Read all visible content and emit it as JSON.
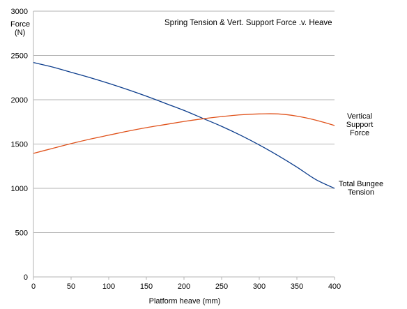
{
  "chart_data": {
    "type": "line",
    "title": "Spring Tension & Vert. Support Force .v. Heave",
    "xlabel": "Platform heave (mm)",
    "ylabel_lines": [
      "Force",
      "(N)"
    ],
    "xlim": [
      0,
      400
    ],
    "ylim": [
      0,
      3000
    ],
    "x_ticks": [
      0,
      50,
      100,
      150,
      200,
      250,
      300,
      350,
      400
    ],
    "y_ticks": [
      0,
      500,
      1000,
      1500,
      2000,
      2500,
      3000
    ],
    "grid": "horizontal",
    "series": [
      {
        "name_lines": [
          "Total Bungee",
          "Tension"
        ],
        "color": "#0b3c8c",
        "x": [
          0,
          25,
          50,
          75,
          100,
          125,
          150,
          175,
          200,
          225,
          250,
          275,
          300,
          325,
          350,
          375,
          400
        ],
        "y": [
          2420,
          2370,
          2310,
          2250,
          2185,
          2115,
          2040,
          1960,
          1880,
          1790,
          1700,
          1600,
          1490,
          1370,
          1240,
          1100,
          1000
        ]
      },
      {
        "name_lines": [
          "Vertical",
          "Support",
          "Force"
        ],
        "color": "#e0521b",
        "x": [
          0,
          25,
          50,
          75,
          100,
          125,
          150,
          175,
          200,
          225,
          250,
          275,
          300,
          325,
          350,
          375,
          400
        ],
        "y": [
          1395,
          1450,
          1505,
          1555,
          1600,
          1645,
          1685,
          1720,
          1755,
          1785,
          1810,
          1830,
          1840,
          1840,
          1815,
          1770,
          1710
        ]
      }
    ]
  }
}
